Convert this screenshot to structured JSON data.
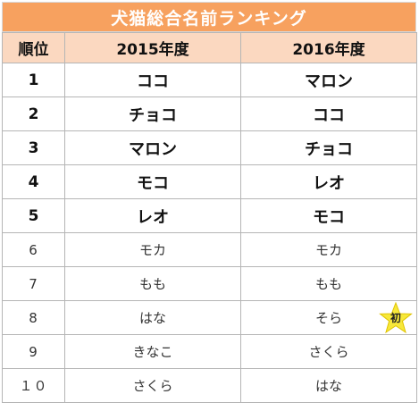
{
  "title": "犬猫総合名前ランキング",
  "headers": {
    "rank": "順位",
    "y2015": "2015年度",
    "y2016": "2016年度"
  },
  "rows": [
    {
      "rank": "1",
      "y2015": "ココ",
      "y2016": "マロン"
    },
    {
      "rank": "2",
      "y2015": "チョコ",
      "y2016": "ココ"
    },
    {
      "rank": "3",
      "y2015": "マロン",
      "y2016": "チョコ"
    },
    {
      "rank": "4",
      "y2015": "モコ",
      "y2016": "レオ"
    },
    {
      "rank": "5",
      "y2015": "レオ",
      "y2016": "モコ"
    },
    {
      "rank": "6",
      "y2015": "モカ",
      "y2016": "モカ"
    },
    {
      "rank": "7",
      "y2015": "もも",
      "y2016": "もも"
    },
    {
      "rank": "8",
      "y2015": "はな",
      "y2016": "そら"
    },
    {
      "rank": "9",
      "y2015": "きなこ",
      "y2016": "さくら"
    },
    {
      "rank": "１０",
      "y2015": "さくら",
      "y2016": "はな"
    }
  ],
  "badge": {
    "label": "初",
    "color": "#f7e83a",
    "icon": "star-icon"
  },
  "colors": {
    "title_bg": "#f7a15f",
    "header_bg": "#fbd8c0"
  }
}
